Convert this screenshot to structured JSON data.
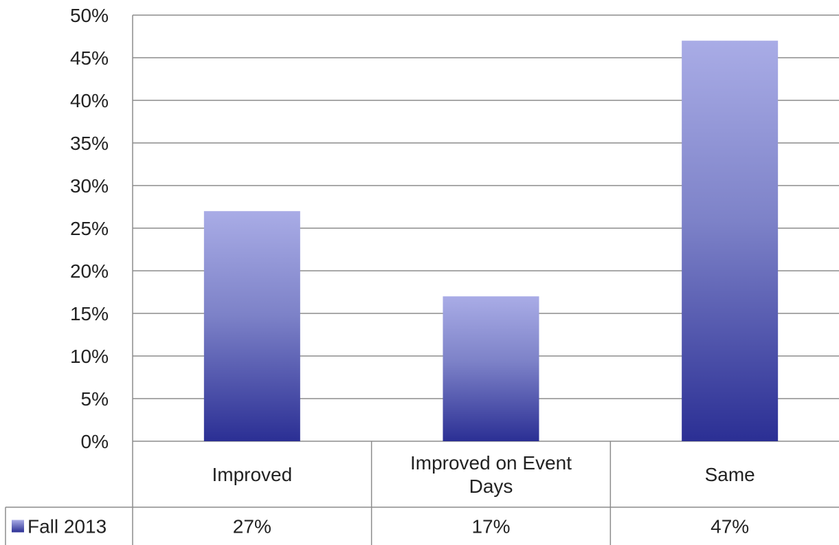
{
  "chart_data": {
    "type": "bar",
    "categories": [
      [
        "Improved"
      ],
      [
        "Improved on Event",
        "Days"
      ],
      [
        "Same"
      ]
    ],
    "series": [
      {
        "name": "Fall 2013",
        "values": [
          27,
          17,
          47
        ],
        "value_labels": [
          "27%",
          "17%",
          "47%"
        ]
      }
    ],
    "ylim": [
      0,
      50
    ],
    "y_ticks": [
      0,
      5,
      10,
      15,
      20,
      25,
      30,
      35,
      40,
      45,
      50
    ],
    "y_tick_labels": [
      "0%",
      "5%",
      "10%",
      "15%",
      "20%",
      "25%",
      "30%",
      "35%",
      "40%",
      "45%",
      "50%"
    ],
    "grid": true,
    "legend": "data-table",
    "bar_color_top": "#a9acE6",
    "bar_color_bottom": "#2b2f94",
    "gridline_color": "#8c8c8c"
  }
}
